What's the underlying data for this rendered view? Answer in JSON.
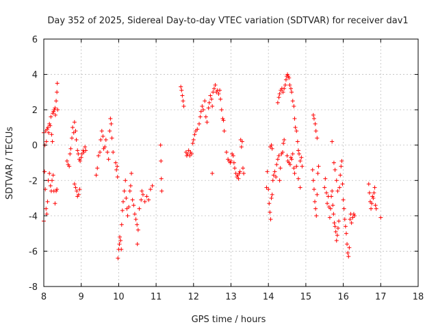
{
  "chart_data": {
    "type": "scatter",
    "title": "Day 352 of 2025, Sidereal Day-to-day VTEC variation (SDTVAR) for receiver dav1",
    "xlabel": "GPS time / hours",
    "ylabel": "SDTVAR / TECUs",
    "xlim": [
      8,
      18
    ],
    "ylim": [
      -8,
      6
    ],
    "x_ticks": [
      "8",
      "9",
      "10",
      "11",
      "12",
      "13",
      "14",
      "15",
      "16",
      "17",
      "18"
    ],
    "y_ticks": [
      "-8",
      "-6",
      "-4",
      "-2",
      "0",
      "2",
      "4",
      "6"
    ],
    "grid": true,
    "marker": "+",
    "color": "#ff0000",
    "series": [
      {
        "name": "SDTVAR",
        "points": [
          [
            8.0,
            -4.3
          ],
          [
            8.02,
            -1.5
          ],
          [
            8.04,
            -2.5
          ],
          [
            8.06,
            -3.6
          ],
          [
            8.08,
            -3.9
          ],
          [
            8.1,
            -3.2
          ],
          [
            8.12,
            -2.0
          ],
          [
            8.0,
            0.7
          ],
          [
            8.03,
            0.0
          ],
          [
            8.05,
            0.8
          ],
          [
            8.07,
            0.2
          ],
          [
            8.09,
            0.9
          ],
          [
            8.11,
            1.0
          ],
          [
            8.13,
            0.7
          ],
          [
            8.15,
            1.2
          ],
          [
            8.17,
            1.1
          ],
          [
            8.19,
            1.6
          ],
          [
            8.21,
            0.6
          ],
          [
            8.23,
            0.2
          ],
          [
            8.24,
            1.8
          ],
          [
            8.26,
            1.9
          ],
          [
            8.28,
            2.0
          ],
          [
            8.3,
            2.1
          ],
          [
            8.31,
            1.7
          ],
          [
            8.33,
            2.5
          ],
          [
            8.35,
            3.0
          ],
          [
            8.36,
            3.5
          ],
          [
            8.37,
            2.0
          ],
          [
            8.15,
            -1.6
          ],
          [
            8.18,
            -2.3
          ],
          [
            8.2,
            -2.6
          ],
          [
            8.22,
            -2.0
          ],
          [
            8.25,
            -1.7
          ],
          [
            8.27,
            -2.6
          ],
          [
            8.3,
            -3.3
          ],
          [
            8.33,
            -2.6
          ],
          [
            8.35,
            -2.5
          ],
          [
            8.62,
            -0.9
          ],
          [
            8.65,
            -1.1
          ],
          [
            8.68,
            -1.2
          ],
          [
            8.7,
            -0.5
          ],
          [
            8.72,
            -0.2
          ],
          [
            8.75,
            0.4
          ],
          [
            8.77,
            1.0
          ],
          [
            8.8,
            0.7
          ],
          [
            8.82,
            1.3
          ],
          [
            8.85,
            0.8
          ],
          [
            8.87,
            0.3
          ],
          [
            8.9,
            -0.3
          ],
          [
            8.92,
            -0.5
          ],
          [
            8.95,
            -0.8
          ],
          [
            8.97,
            -0.9
          ],
          [
            9.0,
            -0.7
          ],
          [
            9.02,
            -0.5
          ],
          [
            9.05,
            -0.3
          ],
          [
            9.07,
            -0.4
          ],
          [
            9.1,
            -0.1
          ],
          [
            9.12,
            -0.3
          ],
          [
            8.82,
            -2.2
          ],
          [
            8.85,
            -2.4
          ],
          [
            8.88,
            -2.6
          ],
          [
            8.9,
            -2.9
          ],
          [
            8.93,
            -2.8
          ],
          [
            8.96,
            -2.5
          ],
          [
            9.4,
            -1.7
          ],
          [
            9.43,
            -1.3
          ],
          [
            9.46,
            -0.6
          ],
          [
            9.5,
            -0.4
          ],
          [
            9.52,
            0.3
          ],
          [
            9.55,
            0.8
          ],
          [
            9.58,
            0.5
          ],
          [
            9.6,
            -0.2
          ],
          [
            9.63,
            -0.1
          ],
          [
            9.66,
            0.3
          ],
          [
            9.7,
            -0.4
          ],
          [
            9.73,
            -0.8
          ],
          [
            9.76,
            0.8
          ],
          [
            9.78,
            1.5
          ],
          [
            9.8,
            1.2
          ],
          [
            9.82,
            0.4
          ],
          [
            9.85,
            -0.4
          ],
          [
            9.92,
            -1.0
          ],
          [
            9.94,
            -1.4
          ],
          [
            9.96,
            -1.2
          ],
          [
            9.97,
            -1.8
          ],
          [
            9.98,
            -6.4
          ],
          [
            10.0,
            -5.9
          ],
          [
            10.02,
            -5.6
          ],
          [
            10.03,
            -5.2
          ],
          [
            10.05,
            -5.4
          ],
          [
            10.07,
            -5.9
          ],
          [
            10.08,
            -4.5
          ],
          [
            10.1,
            -3.7
          ],
          [
            10.12,
            -3.2
          ],
          [
            10.15,
            -2.6
          ],
          [
            10.18,
            -2.0
          ],
          [
            10.2,
            -3.0
          ],
          [
            10.22,
            -3.6
          ],
          [
            10.24,
            -4.0
          ],
          [
            10.27,
            -3.5
          ],
          [
            10.3,
            -2.6
          ],
          [
            10.32,
            -2.3
          ],
          [
            10.34,
            -1.6
          ],
          [
            10.37,
            -3.1
          ],
          [
            10.4,
            -3.4
          ],
          [
            10.43,
            -3.9
          ],
          [
            10.46,
            -4.2
          ],
          [
            10.49,
            -4.5
          ],
          [
            10.52,
            -4.8
          ],
          [
            10.5,
            -5.6
          ],
          [
            10.55,
            -3.6
          ],
          [
            10.6,
            -3.1
          ],
          [
            10.62,
            -2.6
          ],
          [
            10.65,
            -2.8
          ],
          [
            10.7,
            -3.2
          ],
          [
            10.75,
            -2.9
          ],
          [
            10.8,
            -3.1
          ],
          [
            10.85,
            -2.5
          ],
          [
            10.9,
            -2.3
          ],
          [
            11.12,
            0.0
          ],
          [
            11.13,
            -0.9
          ],
          [
            11.14,
            -1.9
          ],
          [
            11.15,
            -2.6
          ],
          [
            11.66,
            3.3
          ],
          [
            11.68,
            3.1
          ],
          [
            11.7,
            2.8
          ],
          [
            11.72,
            2.5
          ],
          [
            11.74,
            2.2
          ],
          [
            11.8,
            -0.4
          ],
          [
            11.82,
            -0.6
          ],
          [
            11.84,
            -0.5
          ],
          [
            11.87,
            -0.3
          ],
          [
            11.9,
            -0.6
          ],
          [
            11.92,
            -0.4
          ],
          [
            11.95,
            -0.5
          ],
          [
            11.98,
            0.1
          ],
          [
            12.0,
            0.3
          ],
          [
            12.03,
            0.6
          ],
          [
            12.06,
            0.8
          ],
          [
            12.1,
            0.9
          ],
          [
            12.15,
            1.2
          ],
          [
            12.18,
            1.6
          ],
          [
            12.2,
            1.9
          ],
          [
            12.23,
            2.2
          ],
          [
            12.26,
            2.0
          ],
          [
            12.3,
            2.5
          ],
          [
            12.33,
            1.6
          ],
          [
            12.36,
            1.3
          ],
          [
            12.4,
            2.1
          ],
          [
            12.42,
            2.4
          ],
          [
            12.45,
            2.8
          ],
          [
            12.48,
            2.6
          ],
          [
            12.5,
            2.2
          ],
          [
            12.52,
            3.0
          ],
          [
            12.55,
            3.2
          ],
          [
            12.58,
            3.4
          ],
          [
            12.61,
            3.0
          ],
          [
            12.64,
            3.1
          ],
          [
            12.67,
            2.9
          ],
          [
            12.7,
            3.1
          ],
          [
            12.72,
            2.6
          ],
          [
            12.75,
            2.0
          ],
          [
            12.78,
            1.5
          ],
          [
            12.8,
            1.4
          ],
          [
            12.82,
            0.8
          ],
          [
            12.5,
            -1.6
          ],
          [
            12.88,
            -0.4
          ],
          [
            12.92,
            -0.8
          ],
          [
            12.95,
            -0.9
          ],
          [
            12.98,
            -1.0
          ],
          [
            13.0,
            -0.9
          ],
          [
            13.03,
            -0.5
          ],
          [
            13.06,
            -0.6
          ],
          [
            13.08,
            -1.0
          ],
          [
            13.1,
            -1.3
          ],
          [
            13.13,
            -1.6
          ],
          [
            13.16,
            -1.8
          ],
          [
            13.18,
            -1.7
          ],
          [
            13.2,
            -1.9
          ],
          [
            13.22,
            -1.6
          ],
          [
            13.24,
            -1.5
          ],
          [
            13.26,
            0.3
          ],
          [
            13.28,
            -0.1
          ],
          [
            13.3,
            0.2
          ],
          [
            13.32,
            -1.3
          ],
          [
            13.34,
            -1.6
          ],
          [
            14.0,
            -2.5
          ],
          [
            14.02,
            -3.3
          ],
          [
            14.04,
            -3.8
          ],
          [
            14.06,
            -4.2
          ],
          [
            14.08,
            -3.0
          ],
          [
            14.1,
            -2.8
          ],
          [
            14.12,
            -2.0
          ],
          [
            14.14,
            -1.7
          ],
          [
            14.17,
            -1.5
          ],
          [
            14.2,
            -1.8
          ],
          [
            14.22,
            -1.1
          ],
          [
            14.25,
            -0.8
          ],
          [
            14.28,
            -0.6
          ],
          [
            14.3,
            -2.0
          ],
          [
            14.32,
            -1.3
          ],
          [
            14.35,
            -0.5
          ],
          [
            14.38,
            -0.4
          ],
          [
            14.4,
            0.1
          ],
          [
            14.42,
            0.3
          ],
          [
            13.95,
            -2.4
          ],
          [
            13.97,
            -1.5
          ],
          [
            14.05,
            -0.1
          ],
          [
            14.08,
            0.0
          ],
          [
            14.1,
            -0.2
          ],
          [
            14.25,
            2.4
          ],
          [
            14.28,
            2.7
          ],
          [
            14.3,
            2.9
          ],
          [
            14.33,
            3.1
          ],
          [
            14.36,
            3.2
          ],
          [
            14.39,
            3.0
          ],
          [
            14.42,
            3.2
          ],
          [
            14.45,
            3.4
          ],
          [
            14.47,
            3.7
          ],
          [
            14.49,
            3.9
          ],
          [
            14.51,
            4.0
          ],
          [
            14.53,
            3.9
          ],
          [
            14.55,
            3.8
          ],
          [
            14.57,
            3.4
          ],
          [
            14.6,
            3.2
          ],
          [
            14.62,
            3.0
          ],
          [
            14.65,
            2.5
          ],
          [
            14.68,
            2.2
          ],
          [
            14.7,
            1.5
          ],
          [
            14.72,
            1.0
          ],
          [
            14.75,
            0.8
          ],
          [
            14.78,
            0.2
          ],
          [
            14.8,
            -0.3
          ],
          [
            14.82,
            -0.5
          ],
          [
            14.85,
            -0.9
          ],
          [
            14.88,
            -0.7
          ],
          [
            14.9,
            -1.2
          ],
          [
            14.5,
            -0.6
          ],
          [
            14.52,
            -0.9
          ],
          [
            14.55,
            -1.0
          ],
          [
            14.58,
            -1.1
          ],
          [
            14.6,
            -0.7
          ],
          [
            14.62,
            -0.8
          ],
          [
            14.65,
            -0.5
          ],
          [
            14.68,
            -1.3
          ],
          [
            14.7,
            -1.6
          ],
          [
            14.75,
            -1.2
          ],
          [
            14.8,
            -1.9
          ],
          [
            14.85,
            -2.4
          ],
          [
            15.2,
            1.7
          ],
          [
            15.22,
            1.5
          ],
          [
            15.25,
            1.2
          ],
          [
            15.27,
            0.8
          ],
          [
            15.3,
            0.4
          ],
          [
            15.18,
            -1.4
          ],
          [
            15.2,
            -2.0
          ],
          [
            15.22,
            -2.5
          ],
          [
            15.24,
            -3.2
          ],
          [
            15.26,
            -3.6
          ],
          [
            15.28,
            -4.0
          ],
          [
            15.3,
            -2.8
          ],
          [
            15.32,
            -1.6
          ],
          [
            15.34,
            -1.2
          ],
          [
            15.5,
            -2.4
          ],
          [
            15.52,
            -1.9
          ],
          [
            15.55,
            -2.7
          ],
          [
            15.57,
            -3.3
          ],
          [
            15.6,
            -2.9
          ],
          [
            15.62,
            -3.5
          ],
          [
            15.64,
            -4.1
          ],
          [
            15.66,
            -3.6
          ],
          [
            15.68,
            -2.9
          ],
          [
            15.7,
            -2.6
          ],
          [
            15.72,
            -3.4
          ],
          [
            15.74,
            -3.9
          ],
          [
            15.76,
            -4.4
          ],
          [
            15.78,
            -4.6
          ],
          [
            15.8,
            -4.9
          ],
          [
            15.82,
            -5.4
          ],
          [
            15.84,
            -5.1
          ],
          [
            15.86,
            -4.7
          ],
          [
            15.88,
            -4.3
          ],
          [
            15.9,
            -2.4
          ],
          [
            15.92,
            -1.7
          ],
          [
            15.94,
            -1.2
          ],
          [
            15.96,
            -0.9
          ],
          [
            15.98,
            -2.2
          ],
          [
            16.0,
            -3.1
          ],
          [
            16.02,
            -3.6
          ],
          [
            16.04,
            -4.2
          ],
          [
            16.06,
            -4.6
          ],
          [
            16.08,
            -5.0
          ],
          [
            16.1,
            -5.6
          ],
          [
            16.12,
            -6.1
          ],
          [
            16.14,
            -6.3
          ],
          [
            16.16,
            -5.8
          ],
          [
            16.18,
            -4.2
          ],
          [
            16.2,
            -3.9
          ],
          [
            16.22,
            -4.4
          ],
          [
            16.25,
            -4.1
          ],
          [
            16.28,
            -3.9
          ],
          [
            16.3,
            -4.0
          ],
          [
            15.7,
            0.2
          ],
          [
            15.75,
            -1.0
          ],
          [
            15.78,
            -1.4
          ],
          [
            15.82,
            -2.0
          ],
          [
            15.85,
            -2.6
          ],
          [
            16.68,
            -2.2
          ],
          [
            16.7,
            -2.7
          ],
          [
            16.72,
            -3.2
          ],
          [
            16.74,
            -3.6
          ],
          [
            16.76,
            -3.3
          ],
          [
            16.78,
            -2.9
          ],
          [
            16.8,
            -3.0
          ],
          [
            16.82,
            -2.7
          ],
          [
            16.84,
            -2.4
          ],
          [
            16.86,
            -3.4
          ],
          [
            16.88,
            -3.6
          ],
          [
            17.0,
            -4.1
          ]
        ]
      }
    ]
  }
}
